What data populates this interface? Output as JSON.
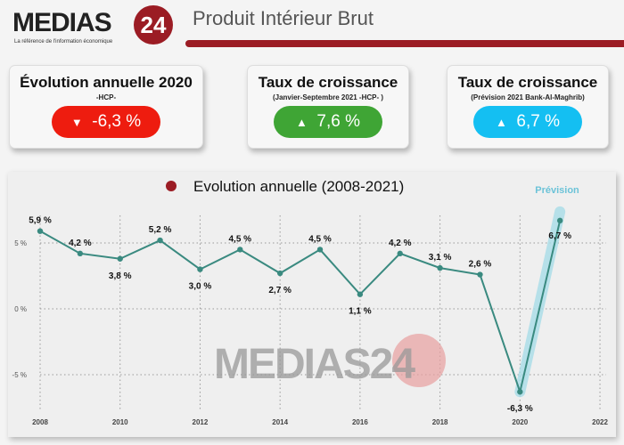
{
  "header": {
    "logo_text": "MEDIAS24",
    "logo_tagline": "La référence de l'information économique",
    "title": "Produit Intérieur Brut",
    "accent": "#9b1c24"
  },
  "cards": [
    {
      "title": "Évolution annuelle 2020",
      "subtitle": "-HCP-",
      "arrow": "▼",
      "value": "-6,3 %",
      "color": "#ee1c0f"
    },
    {
      "title": "Taux de croissance",
      "subtitle": "(Janvier-Septembre 2021 -HCP- )",
      "arrow": "▲",
      "value": "7,6 %",
      "color": "#3fa535"
    },
    {
      "title": "Taux de croissance",
      "subtitle": "(Prévision 2021 Bank-Al-Maghrib)",
      "arrow": "▲",
      "value": "6,7 %",
      "color": "#14bff2"
    }
  ],
  "chart_data": {
    "type": "line",
    "title": "Evolution annuelle (2008-2021)",
    "annotation": "Prévision",
    "x": [
      2008,
      2009,
      2010,
      2011,
      2012,
      2013,
      2014,
      2015,
      2016,
      2017,
      2018,
      2019,
      2020,
      2021
    ],
    "values": [
      5.9,
      4.2,
      3.8,
      5.2,
      3.0,
      4.5,
      2.7,
      4.5,
      1.1,
      4.2,
      3.1,
      2.6,
      -6.3,
      6.7
    ],
    "labels": [
      "5,9 %",
      "4,2 %",
      "3,8 %",
      "5,2 %",
      "3,0 %",
      "4,5 %",
      "2,7 %",
      "4,5 %",
      "1,1 %",
      "4,2 %",
      "3,1 %",
      "2,6 %",
      "-6,3 %",
      "6,7 %"
    ],
    "xticks": [
      "2008",
      "2010",
      "2012",
      "2014",
      "2016",
      "2018",
      "2020",
      "2022"
    ],
    "yticks": [
      {
        "v": 5,
        "label": "5 %"
      },
      {
        "v": 0,
        "label": "0 %"
      },
      {
        "v": -5,
        "label": "-5 %"
      }
    ],
    "xlim": [
      2008,
      2022
    ],
    "grid": true,
    "line_color": "#3a8a80",
    "forecast_color": "#a8dde8",
    "watermark": "MEDIAS24"
  }
}
